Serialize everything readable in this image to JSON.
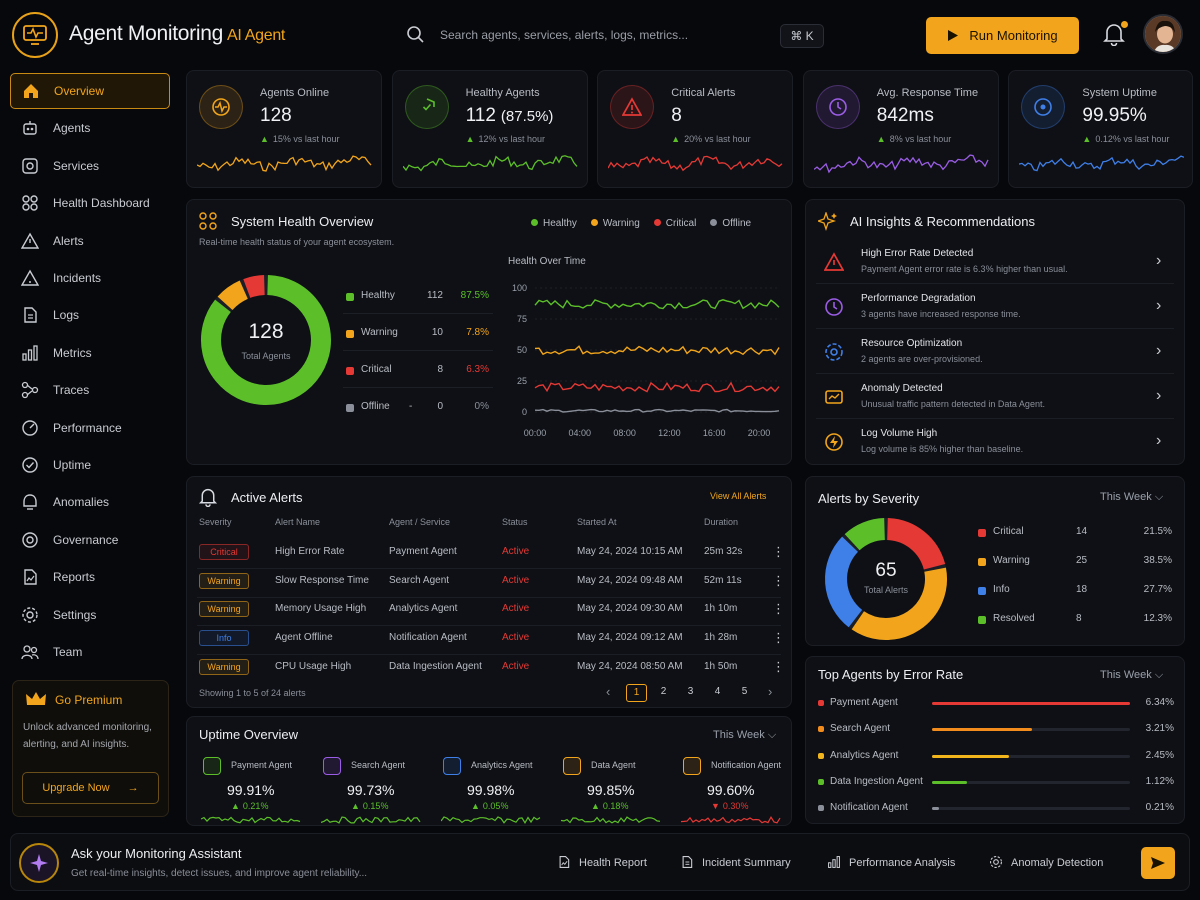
{
  "header": {
    "title": "Agent Monitoring",
    "title_accent": "AI Agent",
    "search_placeholder": "Search agents, services, alerts, logs, metrics...",
    "shortcut": "⌘ K",
    "run_button": "Run Monitoring"
  },
  "sidebar": {
    "items": [
      {
        "label": "Overview",
        "icon": "home-icon"
      },
      {
        "label": "Agents",
        "icon": "agents-icon"
      },
      {
        "label": "Services",
        "icon": "services-icon"
      },
      {
        "label": "Health Dashboard",
        "icon": "dashboard-icon"
      },
      {
        "label": "Alerts",
        "icon": "alert-triangle-icon"
      },
      {
        "label": "Incidents",
        "icon": "incident-icon"
      },
      {
        "label": "Logs",
        "icon": "file-icon"
      },
      {
        "label": "Metrics",
        "icon": "bar-chart-icon"
      },
      {
        "label": "Traces",
        "icon": "traces-icon"
      },
      {
        "label": "Performance",
        "icon": "gauge-icon"
      },
      {
        "label": "Uptime",
        "icon": "check-circle-icon"
      },
      {
        "label": "Anomalies",
        "icon": "anomaly-icon"
      },
      {
        "label": "Governance",
        "icon": "shield-icon"
      },
      {
        "label": "Reports",
        "icon": "report-icon"
      },
      {
        "label": "Settings",
        "icon": "gear-icon"
      },
      {
        "label": "Team",
        "icon": "team-icon"
      }
    ],
    "premium": {
      "title": "Go Premium",
      "description": "Unlock advanced monitoring, alerting, and AI insights.",
      "button": "Upgrade Now"
    }
  },
  "stats": [
    {
      "label": "Agents Online",
      "value": "128",
      "change": "15% vs last hour",
      "color": "#f2a51c",
      "direction": "up"
    },
    {
      "label": "Healthy Agents",
      "value": "112",
      "value_extra": "(87.5%)",
      "change": "12% vs last hour",
      "color": "#5cbf2a",
      "direction": "up"
    },
    {
      "label": "Critical Alerts",
      "value": "8",
      "change": "20% vs last hour",
      "color": "#e53935",
      "direction": "up"
    },
    {
      "label": "Avg. Response Time",
      "value": "842ms",
      "change": "8% vs last hour",
      "color": "#9b5de5",
      "direction": "up"
    },
    {
      "label": "System Uptime",
      "value": "99.95%",
      "change": "0.12% vs last hour",
      "color": "#3f7fe8",
      "direction": "up"
    }
  ],
  "health": {
    "title": "System Health Overview",
    "subtitle": "Real-time health status of your agent ecosystem.",
    "legend": [
      "Healthy",
      "Warning",
      "Critical",
      "Offline"
    ],
    "donut_total": "128",
    "donut_label": "Total Agents",
    "rows": [
      {
        "label": "Healthy",
        "count": "112",
        "pct": "87.5%",
        "color": "#5cbf2a",
        "value": 112
      },
      {
        "label": "Warning",
        "count": "10",
        "pct": "7.8%",
        "color": "#f2a51c",
        "value": 10
      },
      {
        "label": "Critical",
        "count": "8",
        "pct": "6.3%",
        "color": "#e53935",
        "value": 8
      },
      {
        "label": "Offline",
        "count": "0",
        "pct": "0%",
        "color": "#8b8f99",
        "value": 0,
        "dash": "-"
      }
    ],
    "over_time_title": "Health Over Time",
    "y_ticks": [
      "100",
      "75",
      "50",
      "25",
      "0"
    ],
    "x_ticks": [
      "00:00",
      "04:00",
      "08:00",
      "12:00",
      "16:00",
      "20:00"
    ]
  },
  "insights": {
    "title": "AI Insights & Recommendations",
    "items": [
      {
        "title": "High Error Rate Detected",
        "desc": "Payment Agent error rate is 6.3% higher than usual.",
        "color": "#e53935",
        "icon": "warning-icon"
      },
      {
        "title": "Performance Degradation",
        "desc": "3 agents have increased response time.",
        "color": "#9b5de5",
        "icon": "clock-icon"
      },
      {
        "title": "Resource Optimization",
        "desc": "2 agents are over-provisioned.",
        "color": "#3f7fe8",
        "icon": "resource-icon"
      },
      {
        "title": "Anomaly Detected",
        "desc": "Unusual traffic pattern detected in Data Agent.",
        "color": "#f2a51c",
        "icon": "anomaly-icon"
      },
      {
        "title": "Log Volume High",
        "desc": "Log volume is 85% higher than baseline.",
        "color": "#f2a51c",
        "icon": "bolt-icon"
      }
    ]
  },
  "alerts": {
    "title": "Active Alerts",
    "view_all": "View All Alerts",
    "columns": [
      "Severity",
      "Alert Name",
      "Agent / Service",
      "Status",
      "Started At",
      "Duration"
    ],
    "rows": [
      {
        "severity": "Critical",
        "sev_color": "#e53935",
        "name": "High Error Rate",
        "agent": "Payment Agent",
        "status": "Active",
        "started": "May 24, 2024 10:15 AM",
        "duration": "25m 32s"
      },
      {
        "severity": "Warning",
        "sev_color": "#f2a51c",
        "name": "Slow Response Time",
        "agent": "Search Agent",
        "status": "Active",
        "started": "May 24, 2024 09:48 AM",
        "duration": "52m 11s"
      },
      {
        "severity": "Warning",
        "sev_color": "#f2a51c",
        "name": "Memory Usage High",
        "agent": "Analytics Agent",
        "status": "Active",
        "started": "May 24, 2024 09:30 AM",
        "duration": "1h 10m"
      },
      {
        "severity": "Info",
        "sev_color": "#3f7fe8",
        "name": "Agent Offline",
        "agent": "Notification Agent",
        "status": "Active",
        "started": "May 24, 2024 09:12 AM",
        "duration": "1h 28m"
      },
      {
        "severity": "Warning",
        "sev_color": "#f2a51c",
        "name": "CPU Usage High",
        "agent": "Data Ingestion Agent",
        "status": "Active",
        "started": "May 24, 2024 08:50 AM",
        "duration": "1h 50m"
      }
    ],
    "footer": "Showing 1 to 5 of 24 alerts",
    "pages": [
      "1",
      "2",
      "3",
      "4",
      "5"
    ]
  },
  "severity": {
    "title": "Alerts by Severity",
    "period": "This Week",
    "total": "65",
    "total_label": "Total Alerts",
    "rows": [
      {
        "label": "Critical",
        "count": "14",
        "pct": "21.5%",
        "color": "#e53935",
        "value": 14
      },
      {
        "label": "Warning",
        "count": "25",
        "pct": "38.5%",
        "color": "#f2a51c",
        "value": 25
      },
      {
        "label": "Info",
        "count": "18",
        "pct": "27.7%",
        "color": "#3f7fe8",
        "value": 18
      },
      {
        "label": "Resolved",
        "count": "8",
        "pct": "12.3%",
        "color": "#5cbf2a",
        "value": 8
      }
    ]
  },
  "top_agents": {
    "title": "Top Agents by Error Rate",
    "period": "This Week",
    "rows": [
      {
        "label": "Payment Agent",
        "pct": "6.34%",
        "value": 6.34,
        "color": "#e53935"
      },
      {
        "label": "Search Agent",
        "pct": "3.21%",
        "value": 3.21,
        "color": "#f28c1c"
      },
      {
        "label": "Analytics Agent",
        "pct": "2.45%",
        "value": 2.45,
        "color": "#f2b51c"
      },
      {
        "label": "Data Ingestion Agent",
        "pct": "1.12%",
        "value": 1.12,
        "color": "#5cbf2a"
      },
      {
        "label": "Notification Agent",
        "pct": "0.21%",
        "value": 0.21,
        "color": "#8b8f99"
      }
    ]
  },
  "uptime": {
    "title": "Uptime Overview",
    "period": "This Week",
    "agents": [
      {
        "label": "Payment Agent",
        "value": "99.91%",
        "change": "0.21%",
        "dir": "up",
        "color": "#5cbf2a"
      },
      {
        "label": "Search Agent",
        "value": "99.73%",
        "change": "0.15%",
        "dir": "up",
        "color": "#9b5de5"
      },
      {
        "label": "Analytics Agent",
        "value": "99.98%",
        "change": "0.05%",
        "dir": "up",
        "color": "#3f7fe8"
      },
      {
        "label": "Data Agent",
        "value": "99.85%",
        "change": "0.18%",
        "dir": "up",
        "color": "#f2a51c"
      },
      {
        "label": "Notification Agent",
        "value": "99.60%",
        "change": "0.30%",
        "dir": "down",
        "color": "#f2a51c"
      }
    ]
  },
  "assistant": {
    "title": "Ask your Monitoring Assistant",
    "subtitle": "Get real-time insights, detect issues, and improve agent reliability...",
    "chips": [
      "Health Report",
      "Incident Summary",
      "Performance Analysis",
      "Anomaly Detection"
    ]
  }
}
